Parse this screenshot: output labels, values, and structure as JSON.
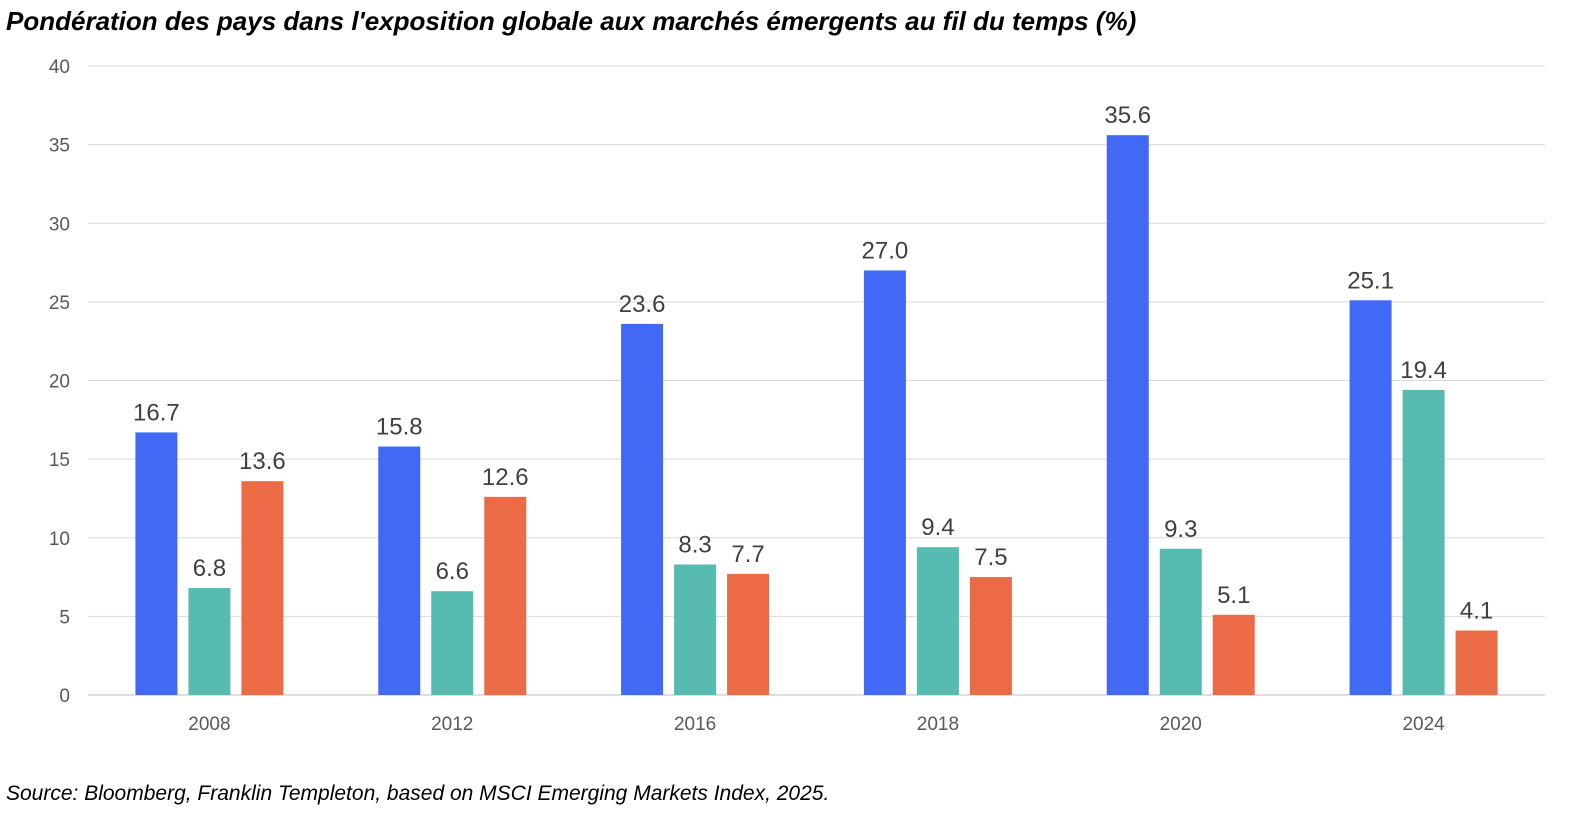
{
  "title": "Pondération des pays dans l'exposition globale aux marchés émergents au fil du temps (%)",
  "source": "Source: Bloomberg, Franklin Templeton, based on MSCI Emerging Markets Index, 2025.",
  "chart_data": {
    "type": "bar",
    "title": "Pondération des pays dans l'exposition globale aux marchés émergents au fil du temps (%)",
    "xlabel": "",
    "ylabel": "",
    "categories": [
      "2008",
      "2012",
      "2016",
      "2018",
      "2020",
      "2024"
    ],
    "series": [
      {
        "color": "#4169f5",
        "values": [
          16.7,
          15.8,
          23.6,
          27.0,
          35.6,
          25.1
        ]
      },
      {
        "color": "#57bbb2",
        "values": [
          6.8,
          6.6,
          8.3,
          9.4,
          9.3,
          19.4
        ]
      },
      {
        "color": "#eb6b47",
        "values": [
          13.6,
          12.6,
          7.7,
          7.5,
          5.1,
          4.1
        ]
      }
    ],
    "ylim": [
      0,
      40
    ],
    "yticks": [
      0,
      5,
      10,
      15,
      20,
      25,
      30,
      35,
      40
    ],
    "grid": true,
    "data_labels": true,
    "legend": "none"
  }
}
